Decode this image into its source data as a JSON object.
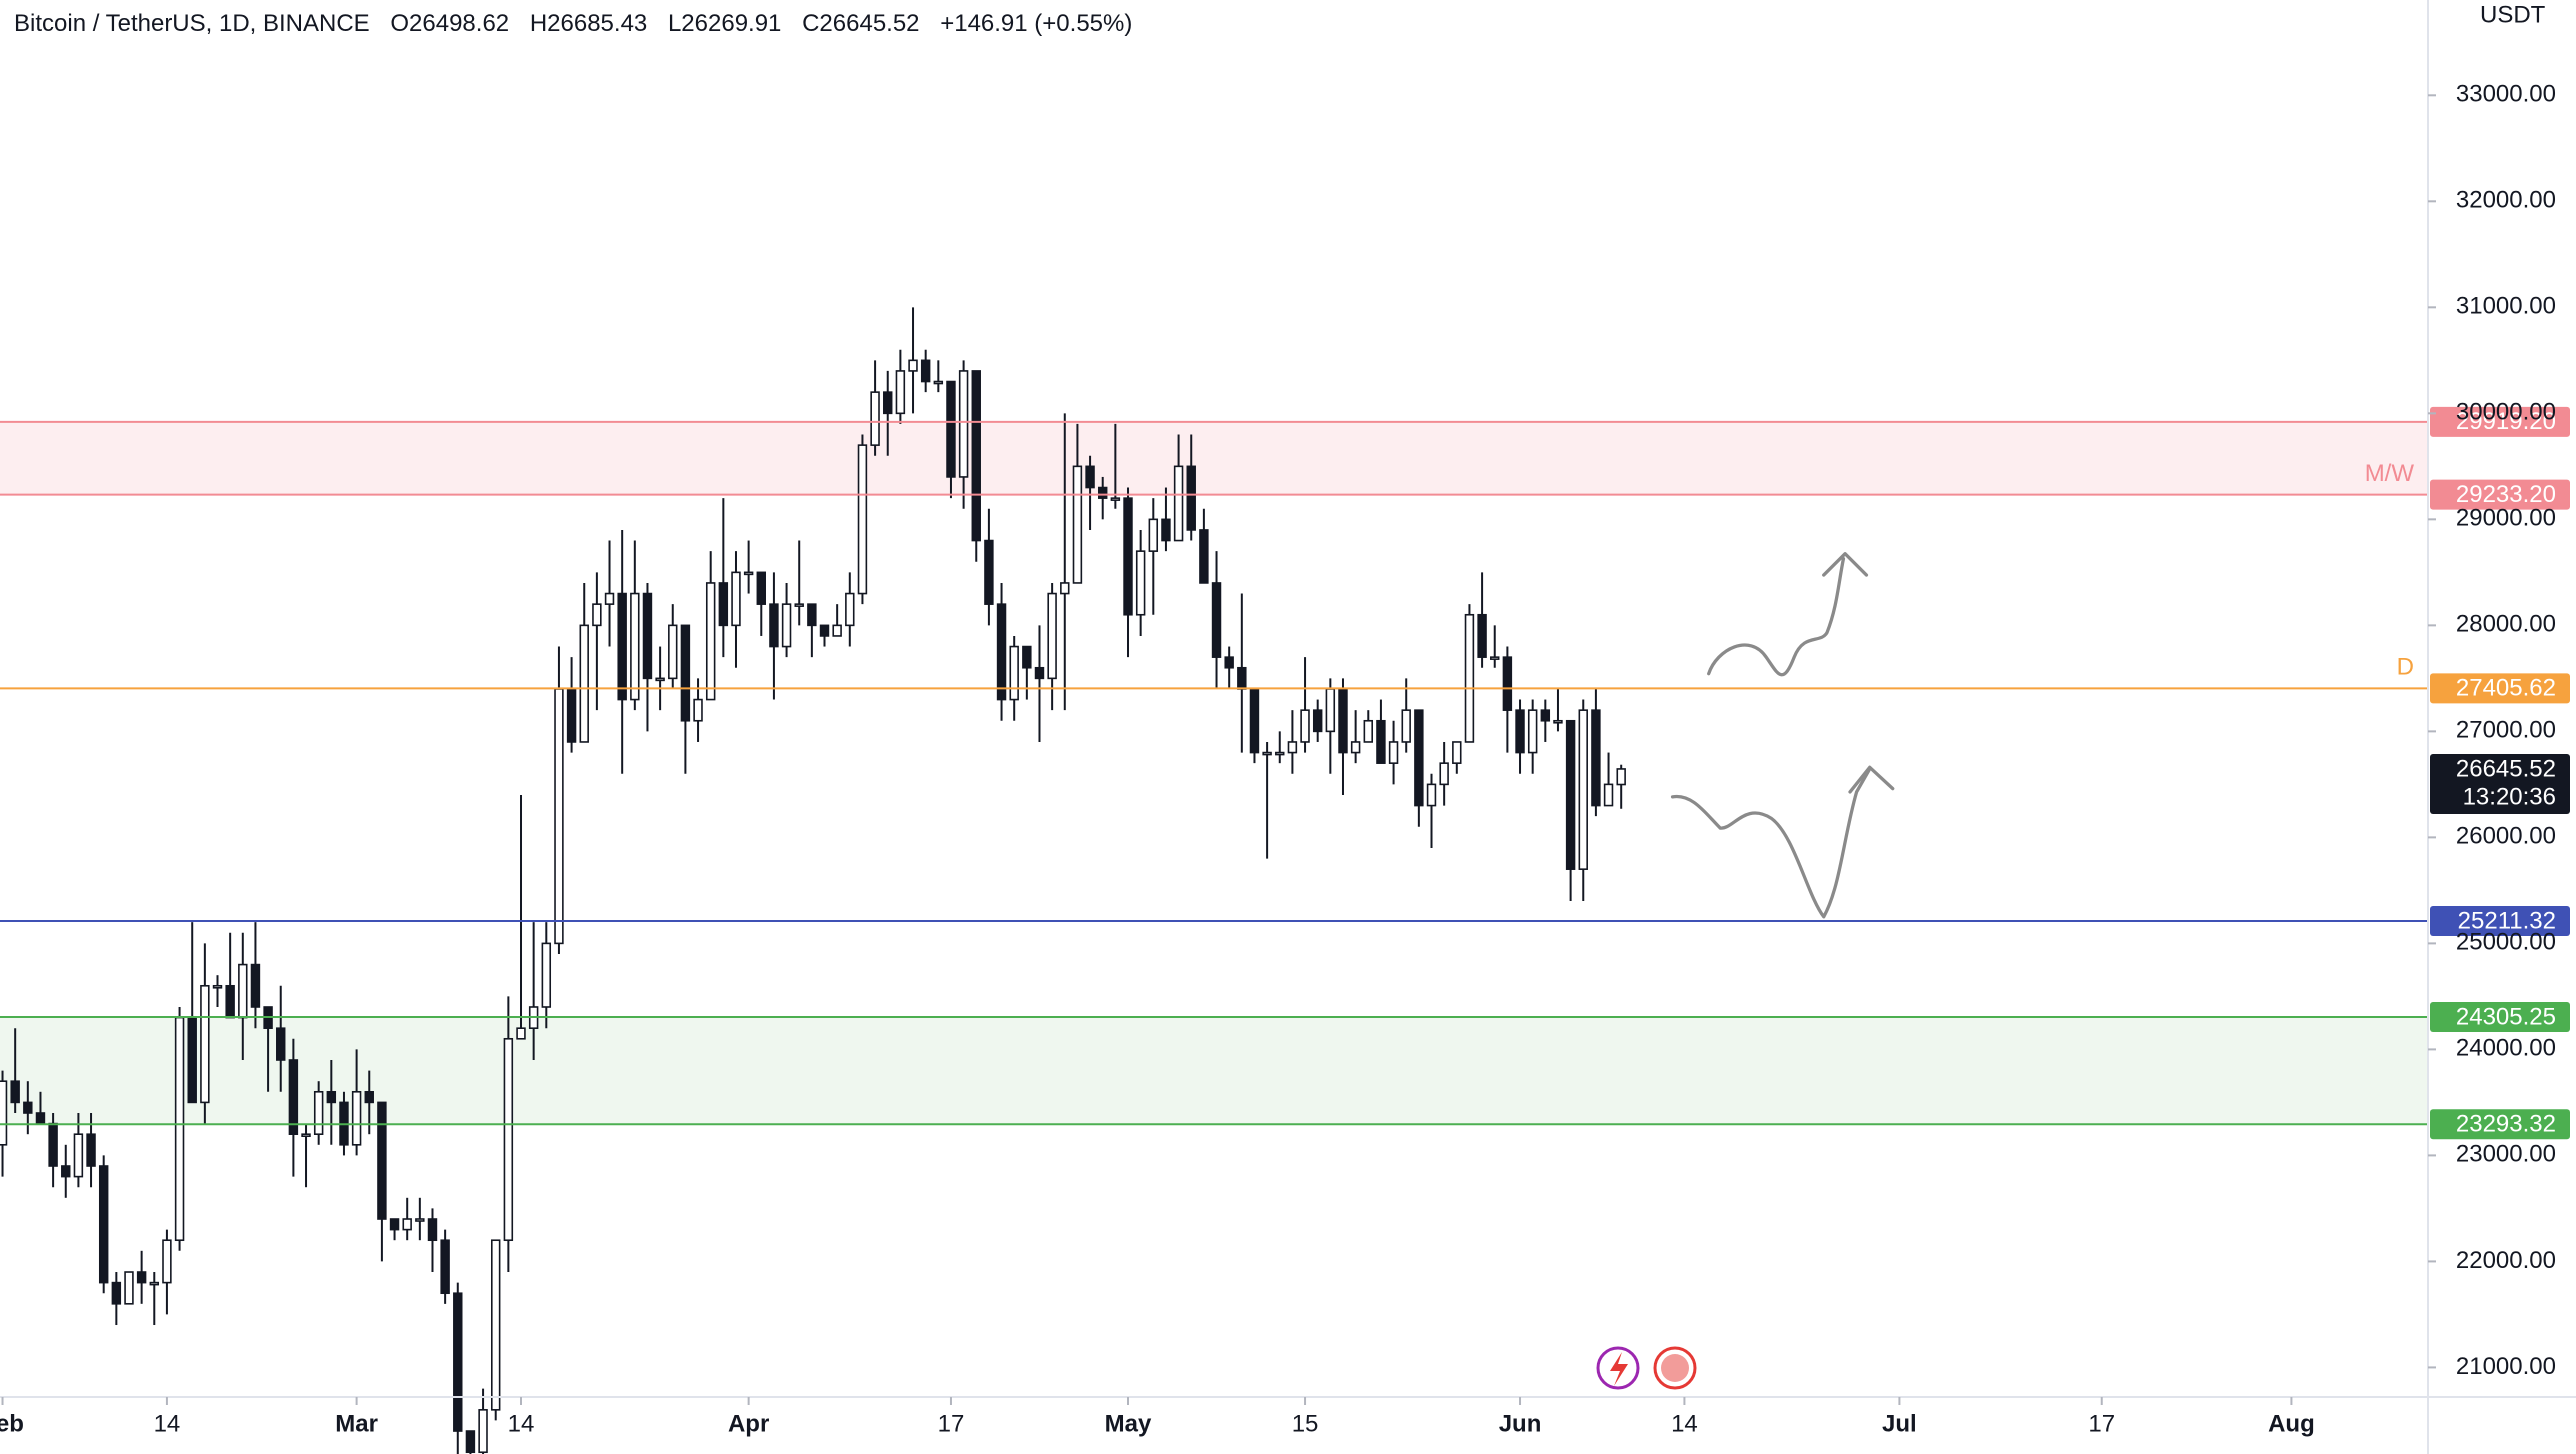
{
  "header": {
    "symbol": "Bitcoin / TetherUS, 1D, BINANCE",
    "ohlc_labels": [
      "O",
      "H",
      "L",
      "C"
    ],
    "change": "+146.91 (+0.55%)"
  },
  "chart_data": {
    "type": "candlestick",
    "y_axis_title": "USDT",
    "up_color": "#ffffff",
    "down_color": "#131722",
    "wick_color": "#131722",
    "xlim": [
      31.8,
      223.8
    ],
    "xticks": [
      {
        "value": 32,
        "label": "Feb"
      },
      {
        "value": 45,
        "label": "14"
      },
      {
        "value": 60,
        "label": "Mar"
      },
      {
        "value": 73,
        "label": "14"
      },
      {
        "value": 91,
        "label": "Apr"
      },
      {
        "value": 107,
        "label": "17"
      },
      {
        "value": 121,
        "label": "May"
      },
      {
        "value": 135,
        "label": "15"
      },
      {
        "value": 152,
        "label": "Jun"
      },
      {
        "value": 165,
        "label": "14"
      },
      {
        "value": 182,
        "label": "Jul"
      },
      {
        "value": 198,
        "label": "17"
      },
      {
        "value": 213,
        "label": "Aug"
      }
    ],
    "ylim": [
      20721,
      33899
    ],
    "yticks": [
      {
        "value": 21000,
        "label": "21000.00"
      },
      {
        "value": 22000,
        "label": "22000.00"
      },
      {
        "value": 23000,
        "label": "23000.00"
      },
      {
        "value": 24000,
        "label": "24000.00"
      },
      {
        "value": 25000,
        "label": "25000.00"
      },
      {
        "value": 26000,
        "label": "26000.00"
      },
      {
        "value": 27000,
        "label": "27000.00"
      },
      {
        "value": 28000,
        "label": "28000.00"
      },
      {
        "value": 29000,
        "label": "29000.00"
      },
      {
        "value": 30000,
        "label": "30000.00"
      },
      {
        "value": 31000,
        "label": "31000.00"
      },
      {
        "value": 32000,
        "label": "32000.00"
      },
      {
        "value": 33000,
        "label": "33000.00"
      }
    ],
    "countdown": "13:20:36",
    "levels": [
      {
        "value": 29919.2,
        "label": "29919.20",
        "color": "#f28b93",
        "fill": "#fdeef0"
      },
      {
        "value": 29233.2,
        "label": "29233.20",
        "color": "#f28b93",
        "tag": "M/W"
      },
      {
        "value": 27405.62,
        "label": "27405.62",
        "color": "#f6a23e",
        "tag": "D"
      },
      {
        "value": 25211.32,
        "label": "25211.32",
        "color": "#3f51b5"
      },
      {
        "value": 24305.25,
        "label": "24305.25",
        "color": "#4caf50",
        "fill": "#eff7ef"
      },
      {
        "value": 23293.32,
        "label": "23293.32",
        "color": "#4caf50"
      }
    ],
    "candles": [
      {
        "x": 32,
        "open": 23100,
        "high": 23800,
        "low": 22800,
        "close": 23700
      },
      {
        "x": 33,
        "open": 23700,
        "high": 24200,
        "low": 23400,
        "close": 23500
      },
      {
        "x": 34,
        "open": 23500,
        "high": 23700,
        "low": 23200,
        "close": 23400
      },
      {
        "x": 35,
        "open": 23400,
        "high": 23600,
        "low": 23300,
        "close": 23300
      },
      {
        "x": 36,
        "open": 23300,
        "high": 23400,
        "low": 22700,
        "close": 22900
      },
      {
        "x": 37,
        "open": 22900,
        "high": 23100,
        "low": 22600,
        "close": 22800
      },
      {
        "x": 38,
        "open": 22800,
        "high": 23400,
        "low": 22700,
        "close": 23200
      },
      {
        "x": 39,
        "open": 23200,
        "high": 23400,
        "low": 22700,
        "close": 22900
      },
      {
        "x": 40,
        "open": 22900,
        "high": 23000,
        "low": 21700,
        "close": 21800
      },
      {
        "x": 41,
        "open": 21800,
        "high": 21900,
        "low": 21400,
        "close": 21600
      },
      {
        "x": 42,
        "open": 21600,
        "high": 21900,
        "low": 21600,
        "close": 21900
      },
      {
        "x": 43,
        "open": 21900,
        "high": 22100,
        "low": 21600,
        "close": 21800
      },
      {
        "x": 44,
        "open": 21800,
        "high": 21900,
        "low": 21400,
        "close": 21800
      },
      {
        "x": 45,
        "open": 21800,
        "high": 22300,
        "low": 21500,
        "close": 22200
      },
      {
        "x": 46,
        "open": 22200,
        "high": 24400,
        "low": 22100,
        "close": 24300
      },
      {
        "x": 47,
        "open": 24300,
        "high": 25200,
        "low": 23500,
        "close": 23500
      },
      {
        "x": 48,
        "open": 23500,
        "high": 25000,
        "low": 23300,
        "close": 24600
      },
      {
        "x": 49,
        "open": 24600,
        "high": 24700,
        "low": 24400,
        "close": 24600
      },
      {
        "x": 50,
        "open": 24600,
        "high": 25100,
        "low": 24300,
        "close": 24300
      },
      {
        "x": 51,
        "open": 24300,
        "high": 25100,
        "low": 23900,
        "close": 24800
      },
      {
        "x": 52,
        "open": 24800,
        "high": 25200,
        "low": 24200,
        "close": 24400
      },
      {
        "x": 53,
        "open": 24400,
        "high": 24400,
        "low": 23600,
        "close": 24200
      },
      {
        "x": 54,
        "open": 24200,
        "high": 24600,
        "low": 23600,
        "close": 23900
      },
      {
        "x": 55,
        "open": 23900,
        "high": 24100,
        "low": 22800,
        "close": 23200
      },
      {
        "x": 56,
        "open": 23200,
        "high": 23300,
        "low": 22700,
        "close": 23200
      },
      {
        "x": 57,
        "open": 23200,
        "high": 23700,
        "low": 23100,
        "close": 23600
      },
      {
        "x": 58,
        "open": 23600,
        "high": 23900,
        "low": 23100,
        "close": 23500
      },
      {
        "x": 59,
        "open": 23500,
        "high": 23600,
        "low": 23000,
        "close": 23100
      },
      {
        "x": 60,
        "open": 23100,
        "high": 24000,
        "low": 23000,
        "close": 23600
      },
      {
        "x": 61,
        "open": 23600,
        "high": 23800,
        "low": 23200,
        "close": 23500
      },
      {
        "x": 62,
        "open": 23500,
        "high": 23500,
        "low": 22000,
        "close": 22400
      },
      {
        "x": 63,
        "open": 22400,
        "high": 22400,
        "low": 22200,
        "close": 22300
      },
      {
        "x": 64,
        "open": 22300,
        "high": 22600,
        "low": 22200,
        "close": 22400
      },
      {
        "x": 65,
        "open": 22400,
        "high": 22600,
        "low": 22200,
        "close": 22400
      },
      {
        "x": 66,
        "open": 22400,
        "high": 22500,
        "low": 21900,
        "close": 22200
      },
      {
        "x": 67,
        "open": 22200,
        "high": 22300,
        "low": 21600,
        "close": 21700
      },
      {
        "x": 68,
        "open": 21700,
        "high": 21800,
        "low": 20000,
        "close": 20400
      },
      {
        "x": 69,
        "open": 20400,
        "high": 20400,
        "low": 19500,
        "close": 20200
      },
      {
        "x": 70,
        "open": 20200,
        "high": 20800,
        "low": 19900,
        "close": 20600
      },
      {
        "x": 71,
        "open": 20600,
        "high": 22200,
        "low": 20500,
        "close": 22200
      },
      {
        "x": 72,
        "open": 22200,
        "high": 24500,
        "low": 21900,
        "close": 24100
      },
      {
        "x": 73,
        "open": 24100,
        "high": 26400,
        "low": 24100,
        "close": 24200
      },
      {
        "x": 74,
        "open": 24200,
        "high": 25200,
        "low": 23900,
        "close": 24400
      },
      {
        "x": 75,
        "open": 24400,
        "high": 25200,
        "low": 24200,
        "close": 25000
      },
      {
        "x": 76,
        "open": 25000,
        "high": 27800,
        "low": 24900,
        "close": 27400
      },
      {
        "x": 77,
        "open": 27400,
        "high": 27700,
        "low": 26800,
        "close": 26900
      },
      {
        "x": 78,
        "open": 26900,
        "high": 28400,
        "low": 26900,
        "close": 28000
      },
      {
        "x": 79,
        "open": 28000,
        "high": 28500,
        "low": 27200,
        "close": 28200
      },
      {
        "x": 80,
        "open": 28200,
        "high": 28800,
        "low": 27800,
        "close": 28300
      },
      {
        "x": 81,
        "open": 28300,
        "high": 28900,
        "low": 26600,
        "close": 27300
      },
      {
        "x": 82,
        "open": 27300,
        "high": 28800,
        "low": 27200,
        "close": 28300
      },
      {
        "x": 83,
        "open": 28300,
        "high": 28400,
        "low": 27000,
        "close": 27500
      },
      {
        "x": 84,
        "open": 27500,
        "high": 27800,
        "low": 27200,
        "close": 27500
      },
      {
        "x": 85,
        "open": 27500,
        "high": 28200,
        "low": 27400,
        "close": 28000
      },
      {
        "x": 86,
        "open": 28000,
        "high": 28000,
        "low": 26600,
        "close": 27100
      },
      {
        "x": 87,
        "open": 27100,
        "high": 27500,
        "low": 26900,
        "close": 27300
      },
      {
        "x": 88,
        "open": 27300,
        "high": 28700,
        "low": 27300,
        "close": 28400
      },
      {
        "x": 89,
        "open": 28400,
        "high": 29200,
        "low": 27700,
        "close": 28000
      },
      {
        "x": 90,
        "open": 28000,
        "high": 28700,
        "low": 27600,
        "close": 28500
      },
      {
        "x": 91,
        "open": 28500,
        "high": 28800,
        "low": 28300,
        "close": 28500
      },
      {
        "x": 92,
        "open": 28500,
        "high": 28500,
        "low": 27900,
        "close": 28200
      },
      {
        "x": 93,
        "open": 28200,
        "high": 28500,
        "low": 27300,
        "close": 27800
      },
      {
        "x": 94,
        "open": 27800,
        "high": 28400,
        "low": 27700,
        "close": 28200
      },
      {
        "x": 95,
        "open": 28200,
        "high": 28800,
        "low": 28000,
        "close": 28200
      },
      {
        "x": 96,
        "open": 28200,
        "high": 28200,
        "low": 27700,
        "close": 28000
      },
      {
        "x": 97,
        "open": 28000,
        "high": 28000,
        "low": 27800,
        "close": 27900
      },
      {
        "x": 98,
        "open": 27900,
        "high": 28200,
        "low": 27900,
        "close": 28000
      },
      {
        "x": 99,
        "open": 28000,
        "high": 28500,
        "low": 27800,
        "close": 28300
      },
      {
        "x": 100,
        "open": 28300,
        "high": 29800,
        "low": 28200,
        "close": 29700
      },
      {
        "x": 101,
        "open": 29700,
        "high": 30500,
        "low": 29600,
        "close": 30200
      },
      {
        "x": 102,
        "open": 30200,
        "high": 30400,
        "low": 29600,
        "close": 30000
      },
      {
        "x": 103,
        "open": 30000,
        "high": 30600,
        "low": 29900,
        "close": 30400
      },
      {
        "x": 104,
        "open": 30400,
        "high": 31000,
        "low": 30000,
        "close": 30500
      },
      {
        "x": 105,
        "open": 30500,
        "high": 30600,
        "low": 30200,
        "close": 30300
      },
      {
        "x": 106,
        "open": 30300,
        "high": 30500,
        "low": 30200,
        "close": 30300
      },
      {
        "x": 107,
        "open": 30300,
        "high": 30300,
        "low": 29200,
        "close": 29400
      },
      {
        "x": 108,
        "open": 29400,
        "high": 30500,
        "low": 29100,
        "close": 30400
      },
      {
        "x": 109,
        "open": 30400,
        "high": 30400,
        "low": 28600,
        "close": 28800
      },
      {
        "x": 110,
        "open": 28800,
        "high": 29100,
        "low": 28000,
        "close": 28200
      },
      {
        "x": 111,
        "open": 28200,
        "high": 28400,
        "low": 27100,
        "close": 27300
      },
      {
        "x": 112,
        "open": 27300,
        "high": 27900,
        "low": 27100,
        "close": 27800
      },
      {
        "x": 113,
        "open": 27800,
        "high": 27800,
        "low": 27300,
        "close": 27600
      },
      {
        "x": 114,
        "open": 27600,
        "high": 28000,
        "low": 26900,
        "close": 27500
      },
      {
        "x": 115,
        "open": 27500,
        "high": 28400,
        "low": 27200,
        "close": 28300
      },
      {
        "x": 116,
        "open": 28300,
        "high": 30000,
        "low": 27200,
        "close": 28400
      },
      {
        "x": 117,
        "open": 28400,
        "high": 29900,
        "low": 28400,
        "close": 29500
      },
      {
        "x": 118,
        "open": 29500,
        "high": 29600,
        "low": 28900,
        "close": 29300
      },
      {
        "x": 119,
        "open": 29300,
        "high": 29400,
        "low": 29000,
        "close": 29200
      },
      {
        "x": 120,
        "open": 29200,
        "high": 29900,
        "low": 29100,
        "close": 29200
      },
      {
        "x": 121,
        "open": 29200,
        "high": 29300,
        "low": 27700,
        "close": 28100
      },
      {
        "x": 122,
        "open": 28100,
        "high": 28900,
        "low": 27900,
        "close": 28700
      },
      {
        "x": 123,
        "open": 28700,
        "high": 29200,
        "low": 28100,
        "close": 29000
      },
      {
        "x": 124,
        "open": 29000,
        "high": 29300,
        "low": 28700,
        "close": 28800
      },
      {
        "x": 125,
        "open": 28800,
        "high": 29800,
        "low": 28800,
        "close": 29500
      },
      {
        "x": 126,
        "open": 29500,
        "high": 29800,
        "low": 28800,
        "close": 28900
      },
      {
        "x": 127,
        "open": 28900,
        "high": 29100,
        "low": 28400,
        "close": 28400
      },
      {
        "x": 128,
        "open": 28400,
        "high": 28700,
        "low": 27400,
        "close": 27700
      },
      {
        "x": 129,
        "open": 27700,
        "high": 27800,
        "low": 27400,
        "close": 27600
      },
      {
        "x": 130,
        "open": 27600,
        "high": 28300,
        "low": 26800,
        "close": 27400
      },
      {
        "x": 131,
        "open": 27400,
        "high": 27400,
        "low": 26700,
        "close": 26800
      },
      {
        "x": 132,
        "open": 26800,
        "high": 26900,
        "low": 25800,
        "close": 26800
      },
      {
        "x": 133,
        "open": 26800,
        "high": 27000,
        "low": 26700,
        "close": 26800
      },
      {
        "x": 134,
        "open": 26800,
        "high": 27200,
        "low": 26600,
        "close": 26900
      },
      {
        "x": 135,
        "open": 26900,
        "high": 27700,
        "low": 26800,
        "close": 27200
      },
      {
        "x": 136,
        "open": 27200,
        "high": 27300,
        "low": 26900,
        "close": 27000
      },
      {
        "x": 137,
        "open": 27000,
        "high": 27500,
        "low": 26600,
        "close": 27400
      },
      {
        "x": 138,
        "open": 27400,
        "high": 27500,
        "low": 26400,
        "close": 26800
      },
      {
        "x": 139,
        "open": 26800,
        "high": 27200,
        "low": 26700,
        "close": 26900
      },
      {
        "x": 140,
        "open": 26900,
        "high": 27200,
        "low": 26900,
        "close": 27100
      },
      {
        "x": 141,
        "open": 27100,
        "high": 27300,
        "low": 26700,
        "close": 26700
      },
      {
        "x": 142,
        "open": 26700,
        "high": 27100,
        "low": 26500,
        "close": 26900
      },
      {
        "x": 143,
        "open": 26900,
        "high": 27500,
        "low": 26800,
        "close": 27200
      },
      {
        "x": 144,
        "open": 27200,
        "high": 27200,
        "low": 26100,
        "close": 26300
      },
      {
        "x": 145,
        "open": 26300,
        "high": 26600,
        "low": 25900,
        "close": 26500
      },
      {
        "x": 146,
        "open": 26500,
        "high": 26900,
        "low": 26300,
        "close": 26700
      },
      {
        "x": 147,
        "open": 26700,
        "high": 26900,
        "low": 26600,
        "close": 26900
      },
      {
        "x": 148,
        "open": 26900,
        "high": 28200,
        "low": 26900,
        "close": 28100
      },
      {
        "x": 149,
        "open": 28100,
        "high": 28500,
        "low": 27600,
        "close": 27700
      },
      {
        "x": 150,
        "open": 27700,
        "high": 28000,
        "low": 27600,
        "close": 27700
      },
      {
        "x": 151,
        "open": 27700,
        "high": 27800,
        "low": 26800,
        "close": 27200
      },
      {
        "x": 152,
        "open": 27200,
        "high": 27300,
        "low": 26600,
        "close": 26800
      },
      {
        "x": 153,
        "open": 26800,
        "high": 27300,
        "low": 26600,
        "close": 27200
      },
      {
        "x": 154,
        "open": 27200,
        "high": 27300,
        "low": 26900,
        "close": 27100
      },
      {
        "x": 155,
        "open": 27100,
        "high": 27400,
        "low": 27000,
        "close": 27100
      },
      {
        "x": 156,
        "open": 27100,
        "high": 27100,
        "low": 25400,
        "close": 25700
      },
      {
        "x": 157,
        "open": 25700,
        "high": 27300,
        "low": 25400,
        "close": 27200
      },
      {
        "x": 158,
        "open": 27200,
        "high": 27400,
        "low": 26200,
        "close": 26300
      },
      {
        "x": 159,
        "open": 26300,
        "high": 26800,
        "low": 26300,
        "close": 26500
      },
      {
        "x": 160,
        "open": 26498.62,
        "high": 26685.43,
        "low": 26269.91,
        "close": 26645.52
      }
    ]
  }
}
